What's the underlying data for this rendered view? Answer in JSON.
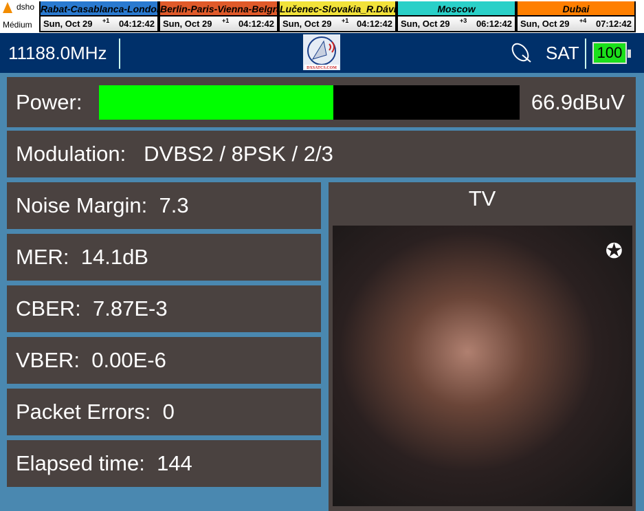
{
  "topbar": {
    "app_name": "dsho",
    "quality": "Médium",
    "clocks": [
      {
        "city": "Rabat-Casablanca-London",
        "date": "Sun, Oct 29",
        "offset": "+1",
        "time": "04:12:42",
        "color": "#2a7ad0"
      },
      {
        "city": "Berlin-Paris-Vienna-Belgrade",
        "date": "Sun, Oct 29",
        "offset": "+1",
        "time": "04:12:42",
        "color": "#e05a2a"
      },
      {
        "city": "Lučenec-Slovakia_R.Dávid",
        "date": "Sun, Oct 29",
        "offset": "+1",
        "time": "04:12:42",
        "color": "#f2e23a"
      },
      {
        "city": "Moscow",
        "date": "Sun, Oct 29",
        "offset": "+3",
        "time": "06:12:42",
        "color": "#2ad0c8"
      },
      {
        "city": "Dubai",
        "date": "Sun, Oct 29",
        "offset": "+4",
        "time": "07:12:42",
        "color": "#ff7f00"
      }
    ]
  },
  "header": {
    "frequency": "11188.0MHz",
    "logo_text": "DXSATCS.COM",
    "mode": "SAT",
    "battery": "100",
    "icon": "satellite-dish-icon"
  },
  "power": {
    "label": "Power:",
    "value": "66.9dBuV",
    "level_fraction": 0.557,
    "bar_color": "#00ff00"
  },
  "modulation": {
    "label": "Modulation:",
    "value": "DVBS2 / 8PSK / 2/3"
  },
  "metrics": [
    {
      "label": "Noise Margin:",
      "value": "7.3"
    },
    {
      "label": "MER:",
      "value": "14.1dB"
    },
    {
      "label": "CBER:",
      "value": "7.87E-3"
    },
    {
      "label": "VBER:",
      "value": "0.00E-6"
    },
    {
      "label": "Packet Errors:",
      "value": "0"
    },
    {
      "label": "Elapsed time:",
      "value": "144"
    }
  ],
  "tv": {
    "label": "TV",
    "channel_logo": "star-icon"
  }
}
